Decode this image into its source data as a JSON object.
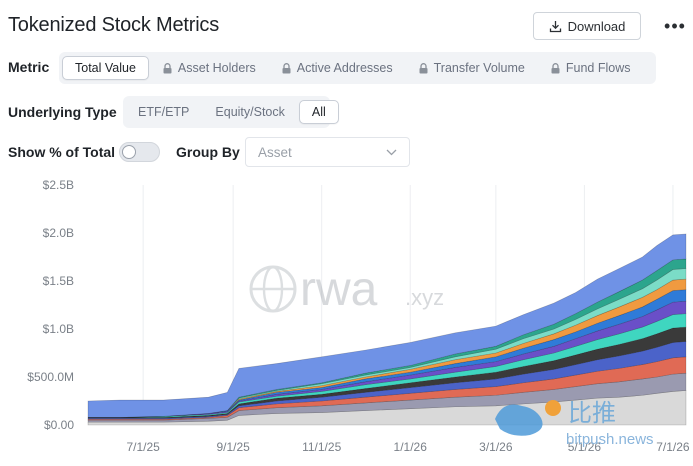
{
  "header": {
    "title": "Tokenized Stock Metrics",
    "download_label": "Download",
    "more_label": "•••"
  },
  "metric": {
    "label": "Metric",
    "options": [
      "Total Value",
      "Asset Holders",
      "Active Addresses",
      "Transfer Volume",
      "Fund Flows"
    ],
    "selected": "Total Value",
    "locked": [
      "Asset Holders",
      "Active Addresses",
      "Transfer Volume",
      "Fund Flows"
    ]
  },
  "underlying_type": {
    "label": "Underlying Type",
    "options": [
      "ETF/ETP",
      "Equity/Stock",
      "All"
    ],
    "selected": "All"
  },
  "show_pct": {
    "label": "Show % of Total",
    "enabled": false
  },
  "group_by": {
    "label": "Group By",
    "placeholder": "Asset"
  },
  "watermark": {
    "brand": "rwa",
    "suffix": ".xyz",
    "cn_text": "比推",
    "site": "bitpush.news"
  },
  "chart_data": {
    "type": "area",
    "stacked": true,
    "yticks": [
      "$2.5B",
      "$2.0B",
      "$1.5B",
      "$1.0B",
      "$500.0M",
      "$0.00"
    ],
    "ylim": [
      0,
      2.5
    ],
    "y_unit": "billion USD",
    "xticks": [
      "7/1/25",
      "9/1/25",
      "11/1/25",
      "1/1/26",
      "3/1/26",
      "5/1/26",
      "7/1/26"
    ],
    "grid": "vertical",
    "x": [
      "2025-05-24",
      "2025-06-15",
      "2025-07-15",
      "2025-08-15",
      "2025-08-28",
      "2025-09-05",
      "2025-10-01",
      "2025-11-01",
      "2025-12-01",
      "2026-01-01",
      "2026-02-01",
      "2026-03-01",
      "2026-03-20",
      "2026-04-10",
      "2026-04-25",
      "2026-05-10",
      "2026-05-25",
      "2026-06-10",
      "2026-06-20",
      "2026-07-01",
      "2026-07-10"
    ],
    "series": [
      {
        "values": [
          0.03,
          0.03,
          0.03,
          0.04,
          0.05,
          0.1,
          0.12,
          0.13,
          0.15,
          0.17,
          0.19,
          0.2,
          0.22,
          0.24,
          0.26,
          0.28,
          0.29,
          0.31,
          0.33,
          0.35,
          0.36
        ]
      },
      {
        "values": [
          0.02,
          0.02,
          0.02,
          0.03,
          0.03,
          0.05,
          0.06,
          0.07,
          0.08,
          0.09,
          0.1,
          0.11,
          0.12,
          0.13,
          0.14,
          0.15,
          0.16,
          0.17,
          0.17,
          0.18,
          0.18
        ]
      },
      {
        "values": [
          0.01,
          0.01,
          0.01,
          0.01,
          0.02,
          0.03,
          0.04,
          0.05,
          0.06,
          0.07,
          0.08,
          0.09,
          0.1,
          0.11,
          0.12,
          0.13,
          0.14,
          0.15,
          0.16,
          0.17,
          0.17
        ]
      },
      {
        "values": [
          0.01,
          0.01,
          0.01,
          0.01,
          0.01,
          0.02,
          0.03,
          0.04,
          0.05,
          0.06,
          0.07,
          0.08,
          0.09,
          0.1,
          0.11,
          0.12,
          0.13,
          0.14,
          0.15,
          0.16,
          0.16
        ]
      },
      {
        "values": [
          0.01,
          0.01,
          0.01,
          0.01,
          0.01,
          0.02,
          0.03,
          0.03,
          0.04,
          0.05,
          0.06,
          0.07,
          0.08,
          0.09,
          0.1,
          0.11,
          0.12,
          0.13,
          0.14,
          0.15,
          0.15
        ]
      },
      {
        "values": [
          0.0,
          0.0,
          0.01,
          0.01,
          0.01,
          0.02,
          0.02,
          0.03,
          0.04,
          0.04,
          0.05,
          0.06,
          0.07,
          0.08,
          0.09,
          0.1,
          0.11,
          0.12,
          0.13,
          0.14,
          0.14
        ]
      },
      {
        "values": [
          0.0,
          0.0,
          0.0,
          0.01,
          0.01,
          0.01,
          0.02,
          0.02,
          0.03,
          0.04,
          0.05,
          0.05,
          0.06,
          0.07,
          0.08,
          0.09,
          0.1,
          0.11,
          0.12,
          0.13,
          0.13
        ]
      },
      {
        "values": [
          0.0,
          0.0,
          0.0,
          0.0,
          0.01,
          0.01,
          0.02,
          0.02,
          0.03,
          0.03,
          0.04,
          0.05,
          0.06,
          0.07,
          0.07,
          0.08,
          0.09,
          0.1,
          0.11,
          0.12,
          0.12
        ]
      },
      {
        "values": [
          0.0,
          0.0,
          0.0,
          0.0,
          0.0,
          0.01,
          0.01,
          0.02,
          0.02,
          0.03,
          0.04,
          0.04,
          0.05,
          0.06,
          0.07,
          0.08,
          0.09,
          0.1,
          0.1,
          0.11,
          0.11
        ]
      },
      {
        "values": [
          0.0,
          0.0,
          0.0,
          0.0,
          0.0,
          0.01,
          0.01,
          0.02,
          0.02,
          0.02,
          0.03,
          0.04,
          0.05,
          0.05,
          0.06,
          0.07,
          0.08,
          0.09,
          0.1,
          0.11,
          0.11
        ]
      },
      {
        "values": [
          0.0,
          0.0,
          0.0,
          0.0,
          0.0,
          0.01,
          0.01,
          0.01,
          0.02,
          0.02,
          0.03,
          0.03,
          0.04,
          0.05,
          0.06,
          0.07,
          0.08,
          0.09,
          0.1,
          0.1,
          0.1
        ]
      },
      {
        "values": [
          0.17,
          0.18,
          0.17,
          0.17,
          0.19,
          0.3,
          0.27,
          0.27,
          0.24,
          0.24,
          0.22,
          0.21,
          0.21,
          0.22,
          0.22,
          0.24,
          0.24,
          0.24,
          0.26,
          0.26,
          0.26
        ]
      }
    ],
    "colors": [
      "#d9d9d9",
      "#9a9ab0",
      "#e06a55",
      "#4b63c9",
      "#3a3a3a",
      "#3fd6c0",
      "#6a4fc8",
      "#2f7bd8",
      "#f09a40",
      "#7bdcc7",
      "#2ca58d",
      "#6f92e6"
    ]
  }
}
